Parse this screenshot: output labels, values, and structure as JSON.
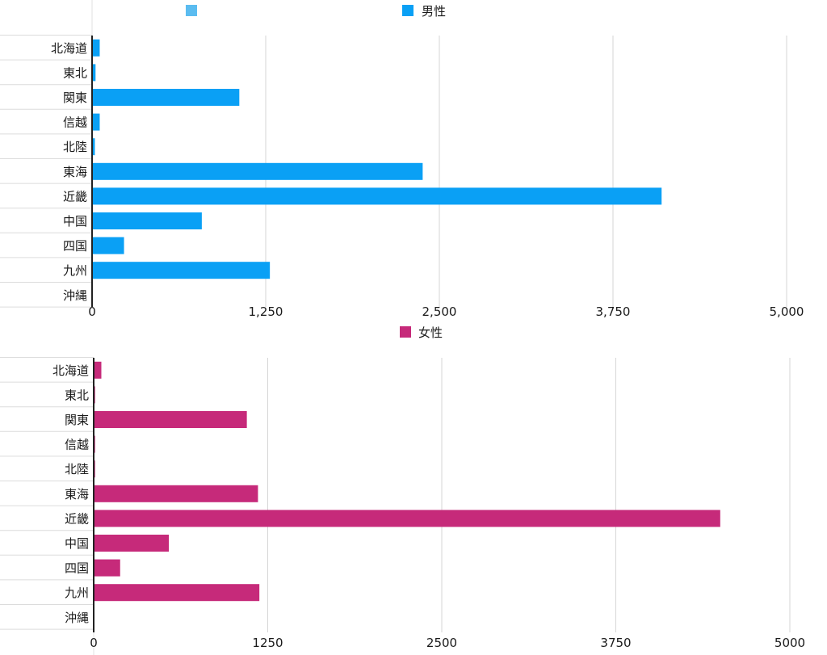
{
  "chart_data": [
    {
      "type": "bar",
      "orientation": "horizontal",
      "categories": [
        "北海道",
        "東北",
        "関東",
        "信越",
        "北陸",
        "東海",
        "近畿",
        "中国",
        "四国",
        "九州",
        "沖縄"
      ],
      "series": [
        {
          "name": "男性",
          "color": "#0aa0f5",
          "values": [
            55,
            25,
            1060,
            55,
            20,
            2380,
            4100,
            790,
            230,
            1280,
            0
          ]
        }
      ],
      "extra_legend": [
        {
          "name": "",
          "color": "#5bbcf0"
        }
      ],
      "xlim": [
        0,
        5000
      ],
      "xticks": [
        0,
        1250,
        2500,
        3750,
        5000
      ],
      "xtick_labels": [
        "0",
        "1,250",
        "2,500",
        "3,750",
        "5,000"
      ],
      "grid": true,
      "legend_position": "top"
    },
    {
      "type": "bar",
      "orientation": "horizontal",
      "categories": [
        "北海道",
        "東北",
        "関東",
        "信越",
        "北陸",
        "東海",
        "近畿",
        "中国",
        "四国",
        "九州",
        "沖縄"
      ],
      "series": [
        {
          "name": "女性",
          "color": "#c62a7a",
          "values": [
            55,
            10,
            1100,
            10,
            10,
            1180,
            4500,
            540,
            190,
            1190,
            0
          ]
        }
      ],
      "xlim": [
        0,
        5000
      ],
      "xticks": [
        0,
        1250,
        2500,
        3750,
        5000
      ],
      "xtick_labels": [
        "0",
        "1250",
        "2500",
        "3750",
        "5000"
      ],
      "grid": true,
      "legend_position": "top"
    }
  ]
}
